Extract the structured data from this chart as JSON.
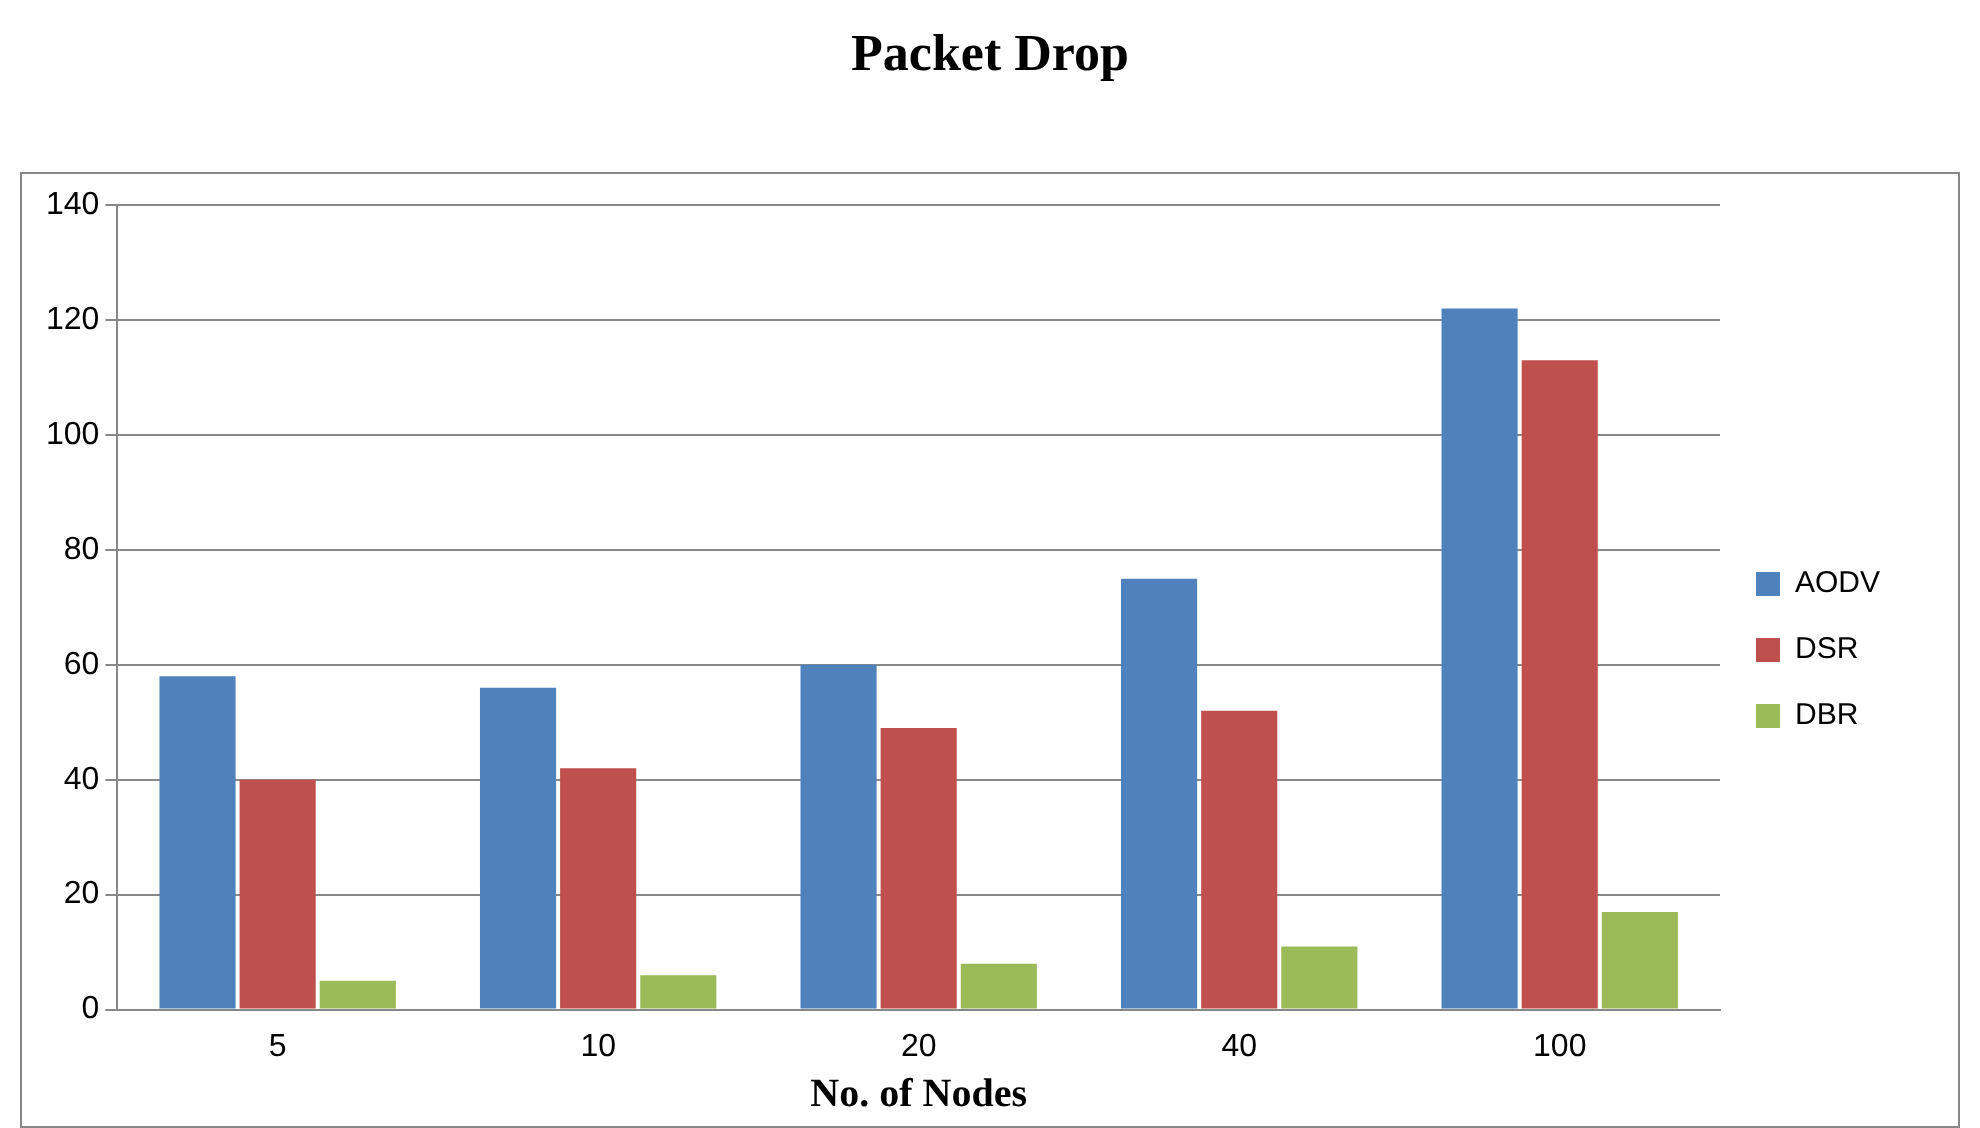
{
  "chart_data": {
    "type": "bar",
    "title": "Packet Drop",
    "xlabel": "No. of Nodes",
    "categories": [
      "5",
      "10",
      "20",
      "40",
      "100"
    ],
    "series": [
      {
        "name": "AODV",
        "color": "#4f81bd",
        "values": [
          58,
          56,
          60,
          75,
          122
        ]
      },
      {
        "name": "DSR",
        "color": "#c0504d",
        "values": [
          40,
          42,
          49,
          52,
          113
        ]
      },
      {
        "name": "DBR",
        "color": "#9bbb59",
        "values": [
          5,
          6,
          8,
          11,
          17
        ]
      }
    ],
    "ylim": [
      0,
      140
    ],
    "yticks": [
      0,
      20,
      40,
      60,
      80,
      100,
      120,
      140
    ],
    "grid": "y",
    "legend": "right"
  }
}
